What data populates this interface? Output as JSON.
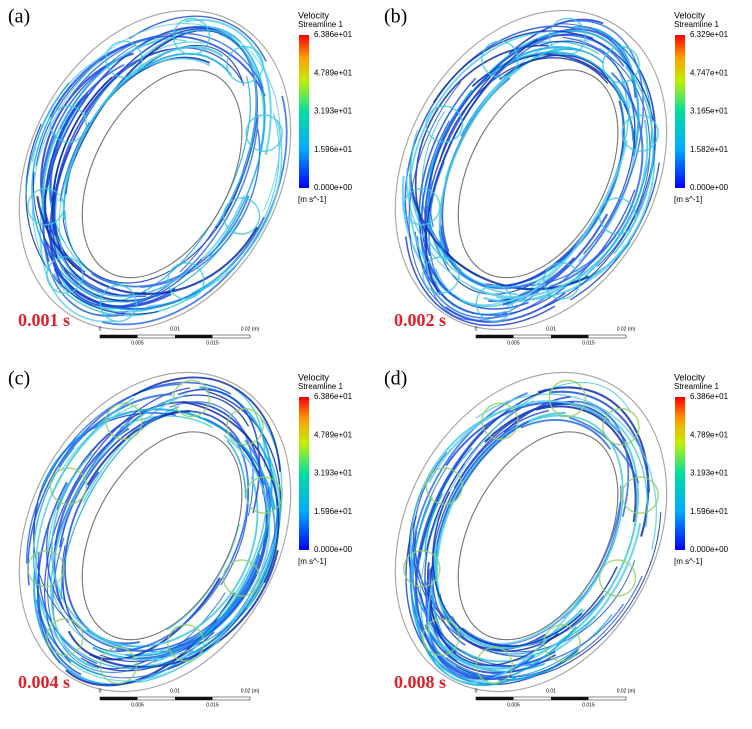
{
  "panels": [
    {
      "label": "(a)",
      "time": "0.001 s",
      "legend": {
        "title": "Velocity",
        "subtitle": "Streamline 1",
        "ticks": [
          "6.386e+01",
          "4.789e+01",
          "3.193e+01",
          "1.596e+01",
          "0.000e+00"
        ],
        "unit": "[m s^-1]"
      },
      "scale": {
        "top": [
          "0",
          "0.01",
          "0.02 (m)"
        ],
        "bottom": [
          "0.005",
          "0.015"
        ]
      }
    },
    {
      "label": "(b)",
      "time": "0.002 s",
      "legend": {
        "title": "Velocity",
        "subtitle": "Streamline 1",
        "ticks": [
          "6.329e+01",
          "4.747e+01",
          "3.165e+01",
          "1.582e+01",
          "0.000e+00"
        ],
        "unit": "[m s^-1]"
      },
      "scale": {
        "top": [
          "0",
          "0.01",
          "0.02 (m)"
        ],
        "bottom": [
          "0.005",
          "0.015"
        ]
      }
    },
    {
      "label": "(c)",
      "time": "0.004 s",
      "legend": {
        "title": "Velocity",
        "subtitle": "Streamline 1",
        "ticks": [
          "6.386e+01",
          "4.789e+01",
          "3.193e+01",
          "1.596e+01",
          "0.000e+00"
        ],
        "unit": "[m s^-1]"
      },
      "scale": {
        "top": [
          "0",
          "0.01",
          "0.02 (m)"
        ],
        "bottom": [
          "0.005",
          "0.015"
        ]
      }
    },
    {
      "label": "(d)",
      "time": "0.008 s",
      "legend": {
        "title": "Velocity",
        "subtitle": "Streamline 1",
        "ticks": [
          "6.386e+01",
          "4.789e+01",
          "3.193e+01",
          "1.596e+01",
          "0.000e+00"
        ],
        "unit": "[m s^-1]"
      },
      "scale": {
        "top": [
          "0",
          "0.01",
          "0.02 (m)"
        ],
        "bottom": [
          "0.005",
          "0.015"
        ]
      }
    }
  ]
}
